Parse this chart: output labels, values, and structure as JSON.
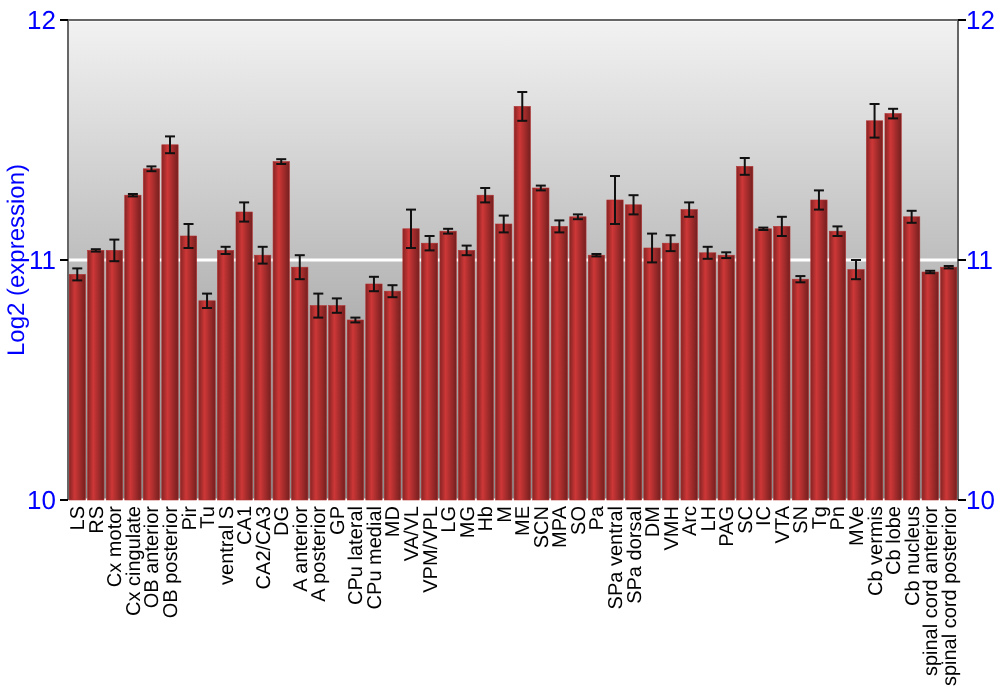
{
  "chart_data": {
    "type": "bar",
    "ylabel": "Log2 (expression)",
    "categories": [
      "LS",
      "RS",
      "Cx motor",
      "Cx cingulate",
      "OB anterior",
      "OB posterior",
      "Pir",
      "Tu",
      "ventral S",
      "CA1",
      "CA2/CA3",
      "DG",
      "A anterior",
      "A posterior",
      "GP",
      "CPu lateral",
      "CPu medial",
      "MD",
      "VA/VL",
      "VPM/VPL",
      "LG",
      "MG",
      "Hb",
      "M",
      "ME",
      "SCN",
      "MPA",
      "SO",
      "Pa",
      "SPa ventral",
      "SPa dorsal",
      "DM",
      "VMH",
      "Arc",
      "LH",
      "PAG",
      "SC",
      "IC",
      "VTA",
      "SN",
      "Tg",
      "Pn",
      "MVe",
      "Cb vermis",
      "Cb lobe",
      "Cb nucleus",
      "spinal cord anterior",
      "spinal cord posterior"
    ],
    "values": [
      10.94,
      11.04,
      11.04,
      11.27,
      11.38,
      11.48,
      11.1,
      10.83,
      11.04,
      11.2,
      11.02,
      11.41,
      10.97,
      10.81,
      10.81,
      10.75,
      10.9,
      10.87,
      11.13,
      11.07,
      11.12,
      11.04,
      11.27,
      11.15,
      11.64,
      11.3,
      11.14,
      11.18,
      11.02,
      11.25,
      11.23,
      11.05,
      11.07,
      11.21,
      11.03,
      11.02,
      11.39,
      11.13,
      11.14,
      10.92,
      11.25,
      11.12,
      10.96,
      11.58,
      11.61,
      11.18,
      10.95,
      10.97
    ],
    "errors": [
      0.025,
      0.005,
      0.045,
      0.005,
      0.01,
      0.035,
      0.05,
      0.03,
      0.015,
      0.04,
      0.035,
      0.01,
      0.05,
      0.05,
      0.03,
      0.01,
      0.03,
      0.025,
      0.08,
      0.03,
      0.01,
      0.02,
      0.03,
      0.035,
      0.06,
      0.01,
      0.025,
      0.01,
      0.005,
      0.1,
      0.04,
      0.06,
      0.033,
      0.03,
      0.025,
      0.012,
      0.035,
      0.005,
      0.04,
      0.013,
      0.04,
      0.02,
      0.04,
      0.07,
      0.02,
      0.025,
      0.005,
      0.005
    ],
    "color": "#b33030",
    "ylim": [
      10,
      12
    ],
    "yticks": [
      10,
      11,
      12
    ],
    "y2lim": [
      10,
      12
    ],
    "y2ticks": [
      10,
      11,
      12
    ],
    "grid": "y"
  }
}
